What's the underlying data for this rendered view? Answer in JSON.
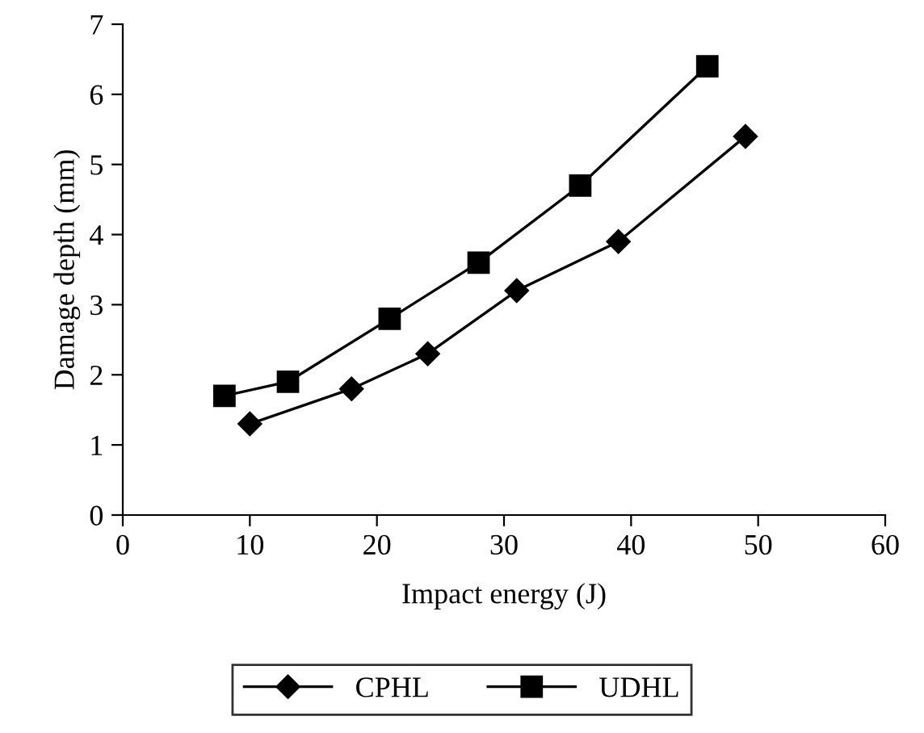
{
  "chart_data": {
    "type": "line",
    "xlabel": "Impact energy (J)",
    "ylabel": "Damage depth (mm)",
    "xlim": [
      0,
      60
    ],
    "xticks": [
      0,
      10,
      20,
      30,
      40,
      50,
      60
    ],
    "ylim": [
      0,
      7
    ],
    "yticks": [
      0,
      1,
      2,
      3,
      4,
      5,
      6,
      7
    ],
    "grid": false,
    "legend": "bottom",
    "line_style": "solid",
    "series": [
      {
        "name": "CPHL",
        "color": "#000000",
        "marker": "diamond",
        "x": [
          10,
          18,
          24,
          31,
          39,
          49
        ],
        "values": [
          1.3,
          1.8,
          2.3,
          3.2,
          3.9,
          5.4
        ]
      },
      {
        "name": "UDHL",
        "color": "#000000",
        "marker": "square",
        "x": [
          8,
          13,
          21,
          28,
          36,
          46
        ],
        "values": [
          1.7,
          1.9,
          2.8,
          3.6,
          4.7,
          6.4
        ]
      }
    ]
  }
}
